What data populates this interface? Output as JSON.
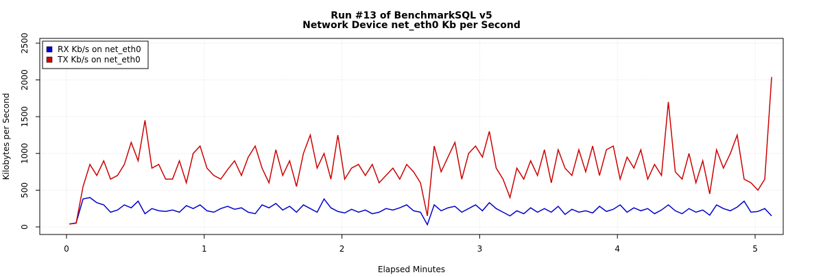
{
  "chart_data": {
    "type": "line",
    "title": "Run #13 of BenchmarkSQL v5",
    "subtitle": "Network Device net_eth0 Kb per Second",
    "x_label": "Elapsed Minutes",
    "y_label": "Kilobytes per Second",
    "x": [
      0.02,
      0.07,
      0.12,
      0.17,
      0.22,
      0.27,
      0.32,
      0.37,
      0.42,
      0.47,
      0.52,
      0.57,
      0.62,
      0.67,
      0.72,
      0.77,
      0.82,
      0.87,
      0.92,
      0.97,
      1.02,
      1.07,
      1.12,
      1.17,
      1.22,
      1.27,
      1.32,
      1.37,
      1.42,
      1.47,
      1.52,
      1.57,
      1.62,
      1.67,
      1.72,
      1.77,
      1.82,
      1.87,
      1.92,
      1.97,
      2.02,
      2.07,
      2.12,
      2.17,
      2.22,
      2.27,
      2.32,
      2.37,
      2.42,
      2.47,
      2.52,
      2.57,
      2.62,
      2.67,
      2.72,
      2.77,
      2.82,
      2.87,
      2.92,
      2.97,
      3.02,
      3.07,
      3.12,
      3.17,
      3.22,
      3.27,
      3.32,
      3.37,
      3.42,
      3.47,
      3.52,
      3.57,
      3.62,
      3.67,
      3.72,
      3.77,
      3.82,
      3.87,
      3.92,
      3.97,
      4.02,
      4.07,
      4.12,
      4.17,
      4.22,
      4.27,
      4.32,
      4.37,
      4.42,
      4.47,
      4.52,
      4.57,
      4.62,
      4.67,
      4.72,
      4.77,
      4.82,
      4.87,
      4.92,
      4.97,
      5.02,
      5.07,
      5.12
    ],
    "series": [
      {
        "name": "RX Kb/s on net_eth0",
        "color": "#0000cc",
        "values": [
          40,
          55,
          380,
          400,
          330,
          300,
          200,
          230,
          300,
          260,
          350,
          180,
          250,
          220,
          210,
          230,
          200,
          290,
          250,
          300,
          220,
          200,
          250,
          280,
          240,
          260,
          200,
          180,
          300,
          260,
          320,
          230,
          280,
          200,
          300,
          250,
          200,
          380,
          260,
          210,
          190,
          240,
          200,
          230,
          180,
          200,
          250,
          230,
          260,
          300,
          220,
          200,
          30,
          300,
          220,
          260,
          280,
          200,
          250,
          300,
          220,
          330,
          250,
          200,
          150,
          220,
          180,
          260,
          200,
          250,
          200,
          280,
          170,
          240,
          200,
          220,
          190,
          280,
          210,
          240,
          300,
          200,
          260,
          220,
          250,
          180,
          230,
          300,
          220,
          180,
          250,
          200,
          230,
          160,
          300,
          250,
          220,
          270,
          350,
          200,
          210,
          250,
          150
        ]
      },
      {
        "name": "TX Kb/s on net_eth0",
        "color": "#cc0000",
        "values": [
          40,
          50,
          550,
          850,
          700,
          900,
          650,
          700,
          850,
          1150,
          900,
          1450,
          800,
          850,
          650,
          650,
          900,
          600,
          1000,
          1100,
          800,
          700,
          650,
          780,
          900,
          700,
          950,
          1100,
          800,
          600,
          1050,
          700,
          900,
          550,
          1000,
          1250,
          800,
          1000,
          650,
          1250,
          650,
          800,
          850,
          700,
          850,
          600,
          700,
          800,
          650,
          850,
          750,
          600,
          150,
          1100,
          750,
          950,
          1150,
          650,
          1000,
          1100,
          950,
          1300,
          800,
          650,
          400,
          800,
          650,
          900,
          700,
          1050,
          600,
          1050,
          800,
          700,
          1050,
          750,
          1100,
          700,
          1050,
          1100,
          650,
          950,
          800,
          1050,
          650,
          850,
          700,
          1700,
          750,
          650,
          1000,
          600,
          900,
          450,
          1050,
          800,
          1000,
          1250,
          650,
          600,
          500,
          650,
          2040
        ]
      }
    ],
    "xlim": [
      -0.194,
      5.204
    ],
    "xticks": [
      0,
      1,
      2,
      3,
      4,
      5
    ],
    "ylim": [
      -103,
      2565
    ],
    "yticks": [
      0,
      500,
      1000,
      1500,
      2000,
      2500
    ],
    "grid": true,
    "legend": "top-left"
  }
}
